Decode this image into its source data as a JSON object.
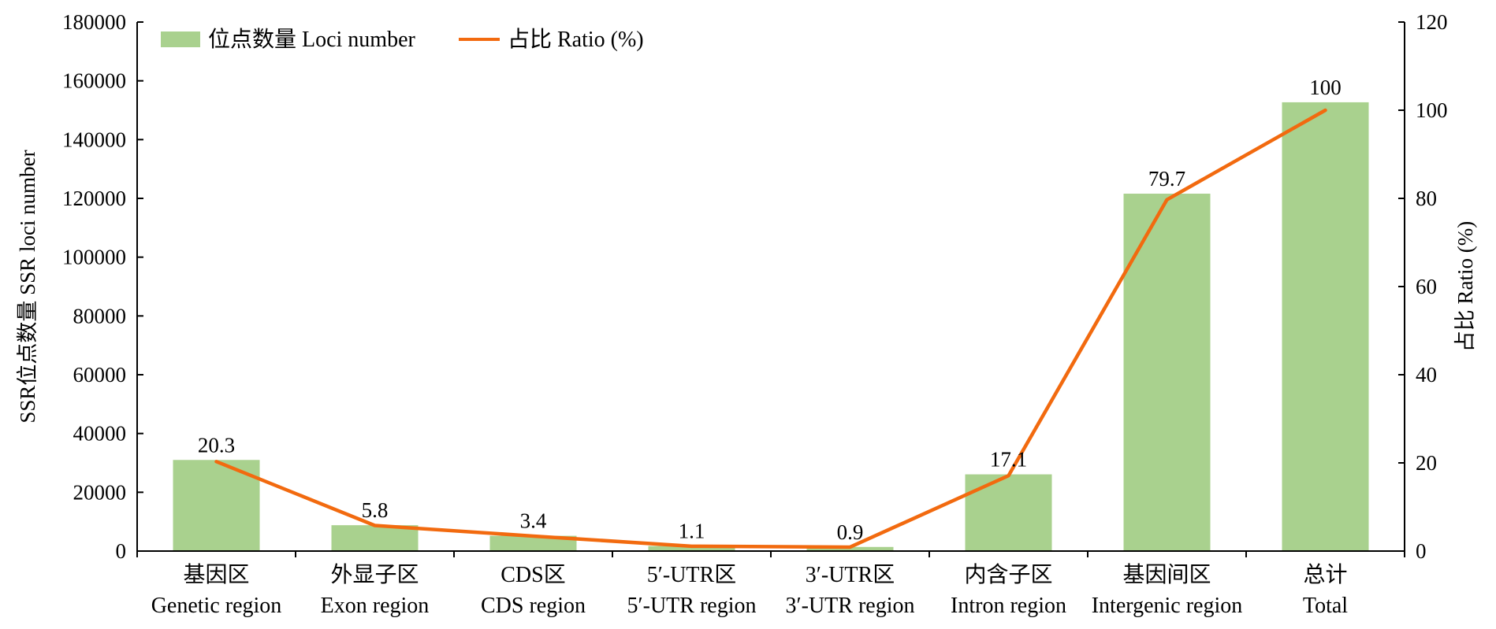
{
  "chart_data": {
    "type": "bar",
    "categories": [
      {
        "zh": "基因区",
        "en": "Genetic region"
      },
      {
        "zh": "外显子区",
        "en": "Exon region"
      },
      {
        "zh": "CDS区",
        "en": "CDS region"
      },
      {
        "zh": "5′-UTR区",
        "en": "5′-UTR region"
      },
      {
        "zh": "3′-UTR区",
        "en": "3′-UTR region"
      },
      {
        "zh": "内含子区",
        "en": "Intron region"
      },
      {
        "zh": "基因间区",
        "en": "Intergenic region"
      },
      {
        "zh": "总计",
        "en": "Total"
      }
    ],
    "series": [
      {
        "name": "位点数量 Loci number",
        "type": "bar",
        "axis": "left",
        "color": "#a9d18e",
        "values": [
          31000,
          8800,
          5200,
          1700,
          1400,
          26100,
          121600,
          152700
        ]
      },
      {
        "name": "占比 Ratio (%)",
        "type": "line",
        "axis": "right",
        "color": "#f26a0f",
        "values": [
          20.3,
          5.8,
          3.4,
          1.1,
          0.9,
          17.1,
          79.7,
          100
        ],
        "data_labels": [
          "20.3",
          "5.8",
          "3.4",
          "1.1",
          "0.9",
          "17.1",
          "79.7",
          "100"
        ]
      }
    ],
    "y_left": {
      "label": "SSR位点数量 SSR loci number",
      "lim": [
        0,
        180000
      ],
      "ticks": [
        "0",
        "20000",
        "40000",
        "60000",
        "80000",
        "100000",
        "120000",
        "140000",
        "160000",
        "180000"
      ]
    },
    "y_right": {
      "label": "占比 Ratio (%)",
      "lim": [
        0,
        120
      ],
      "ticks": [
        "0",
        "20",
        "40",
        "60",
        "80",
        "100",
        "120"
      ]
    },
    "legend": {
      "placement": "top-left",
      "items": [
        "位点数量 Loci number",
        "占比 Ratio (%)"
      ]
    },
    "grid": false
  }
}
